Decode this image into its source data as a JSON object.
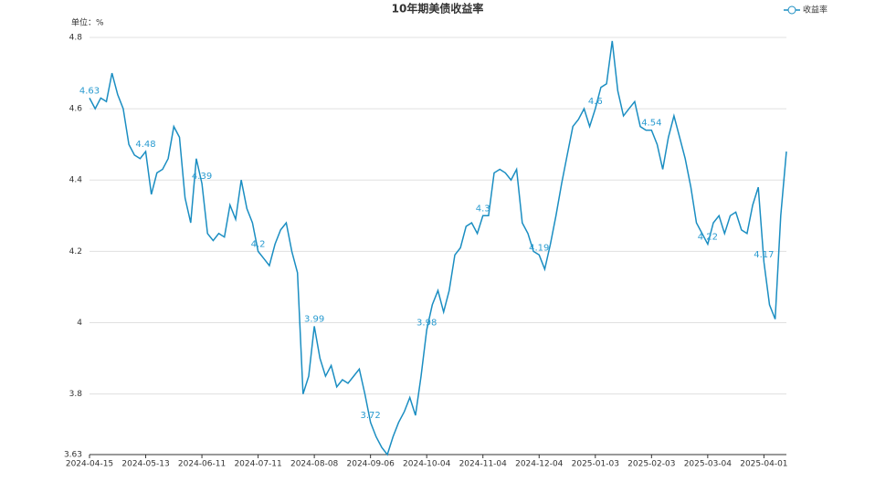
{
  "chart_data": {
    "type": "line",
    "title": "10年期美债收益率",
    "unit_label": "单位：%",
    "categories": [
      "2024-04-15",
      null,
      null,
      null,
      null,
      null,
      null,
      null,
      null,
      null,
      "2024-05-13",
      null,
      null,
      null,
      null,
      null,
      null,
      null,
      null,
      null,
      "2024-06-11",
      null,
      null,
      null,
      null,
      null,
      null,
      null,
      null,
      null,
      "2024-07-11",
      null,
      null,
      null,
      null,
      null,
      null,
      null,
      null,
      null,
      "2024-08-08",
      null,
      null,
      null,
      null,
      null,
      null,
      null,
      null,
      null,
      "2024-09-06",
      null,
      null,
      null,
      null,
      null,
      null,
      null,
      null,
      null,
      "2024-10-04",
      null,
      null,
      null,
      null,
      null,
      null,
      null,
      null,
      null,
      "2024-11-04",
      null,
      null,
      null,
      null,
      null,
      null,
      null,
      null,
      null,
      "2024-12-04",
      null,
      null,
      null,
      null,
      null,
      null,
      null,
      null,
      null,
      "2025-01-03",
      null,
      null,
      null,
      null,
      null,
      null,
      null,
      null,
      null,
      "2025-02-03",
      null,
      null,
      null,
      null,
      null,
      null,
      null,
      null,
      null,
      "2025-03-04",
      null,
      null,
      null,
      null,
      null,
      null,
      null,
      null,
      null,
      "2025-04-01",
      null,
      null,
      null,
      null
    ],
    "series": [
      {
        "name": "收益率",
        "color": "#1b8ec2",
        "values": [
          4.63,
          4.6,
          4.63,
          4.62,
          4.7,
          4.64,
          4.6,
          4.5,
          4.47,
          4.46,
          4.48,
          4.36,
          4.42,
          4.43,
          4.46,
          4.55,
          4.52,
          4.35,
          4.28,
          4.46,
          4.39,
          4.25,
          4.23,
          4.25,
          4.24,
          4.33,
          4.29,
          4.4,
          4.32,
          4.28,
          4.2,
          4.18,
          4.16,
          4.22,
          4.26,
          4.28,
          4.2,
          4.14,
          3.8,
          3.85,
          3.99,
          3.9,
          3.85,
          3.88,
          3.82,
          3.84,
          3.83,
          3.85,
          3.87,
          3.8,
          3.72,
          3.68,
          3.65,
          3.63,
          3.68,
          3.72,
          3.75,
          3.79,
          3.74,
          3.85,
          3.98,
          4.05,
          4.09,
          4.03,
          4.09,
          4.19,
          4.21,
          4.27,
          4.28,
          4.25,
          4.3,
          4.3,
          4.42,
          4.43,
          4.42,
          4.4,
          4.43,
          4.28,
          4.25,
          4.2,
          4.19,
          4.15,
          4.22,
          4.3,
          4.39,
          4.47,
          4.55,
          4.57,
          4.6,
          4.55,
          4.6,
          4.66,
          4.67,
          4.79,
          4.65,
          4.58,
          4.6,
          4.62,
          4.55,
          4.54,
          4.54,
          4.5,
          4.43,
          4.52,
          4.58,
          4.52,
          4.46,
          4.38,
          4.28,
          4.25,
          4.22,
          4.28,
          4.3,
          4.25,
          4.3,
          4.31,
          4.26,
          4.25,
          4.33,
          4.38,
          4.17,
          4.05,
          4.01,
          4.3,
          4.48
        ]
      }
    ],
    "ylim": [
      3.63,
      4.8
    ],
    "yticks": [
      3.63,
      3.8,
      4,
      4.2,
      4.4,
      4.6,
      4.8
    ],
    "grid": true
  }
}
